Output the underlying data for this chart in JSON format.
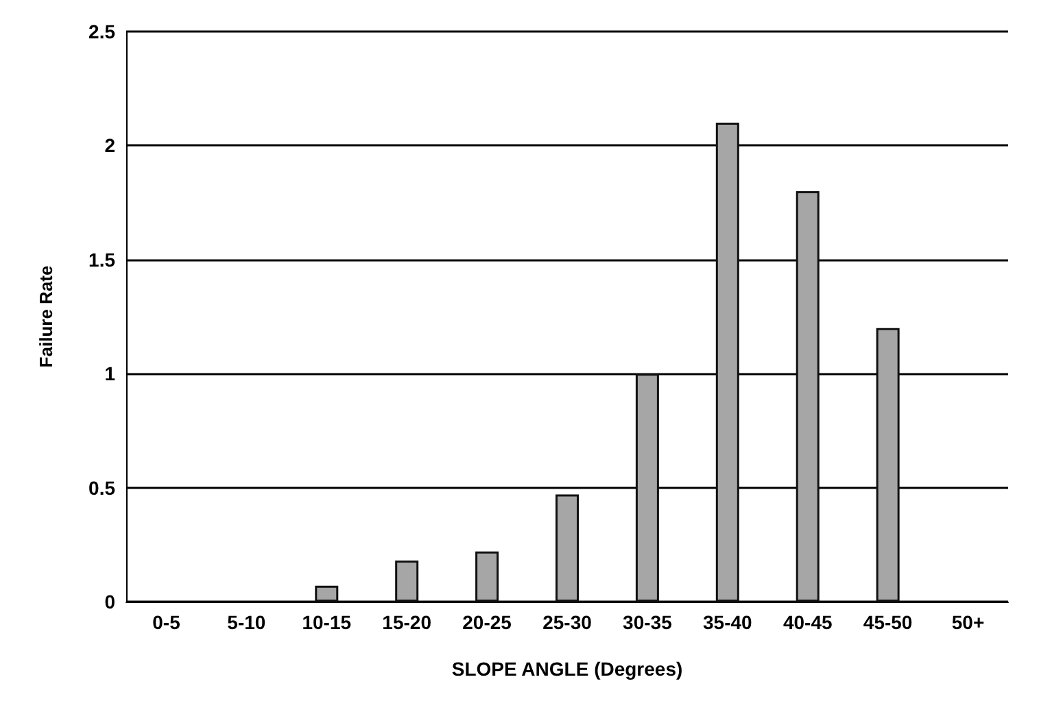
{
  "chart_data": {
    "type": "bar",
    "xlabel": "SLOPE ANGLE (Degrees)",
    "ylabel": "Failure Rate",
    "categories": [
      "0-5",
      "5-10",
      "10-15",
      "15-20",
      "20-25",
      "25-30",
      "30-35",
      "35-40",
      "40-45",
      "45-50",
      "50+"
    ],
    "values": [
      0,
      0,
      0.07,
      0.18,
      0.22,
      0.47,
      1.0,
      2.1,
      1.8,
      1.2,
      0
    ],
    "color": "#a6a6a6",
    "ylim": [
      0,
      2.5
    ],
    "yticks": [
      0,
      0.5,
      1,
      1.5,
      2,
      2.5
    ],
    "grid": "y"
  }
}
